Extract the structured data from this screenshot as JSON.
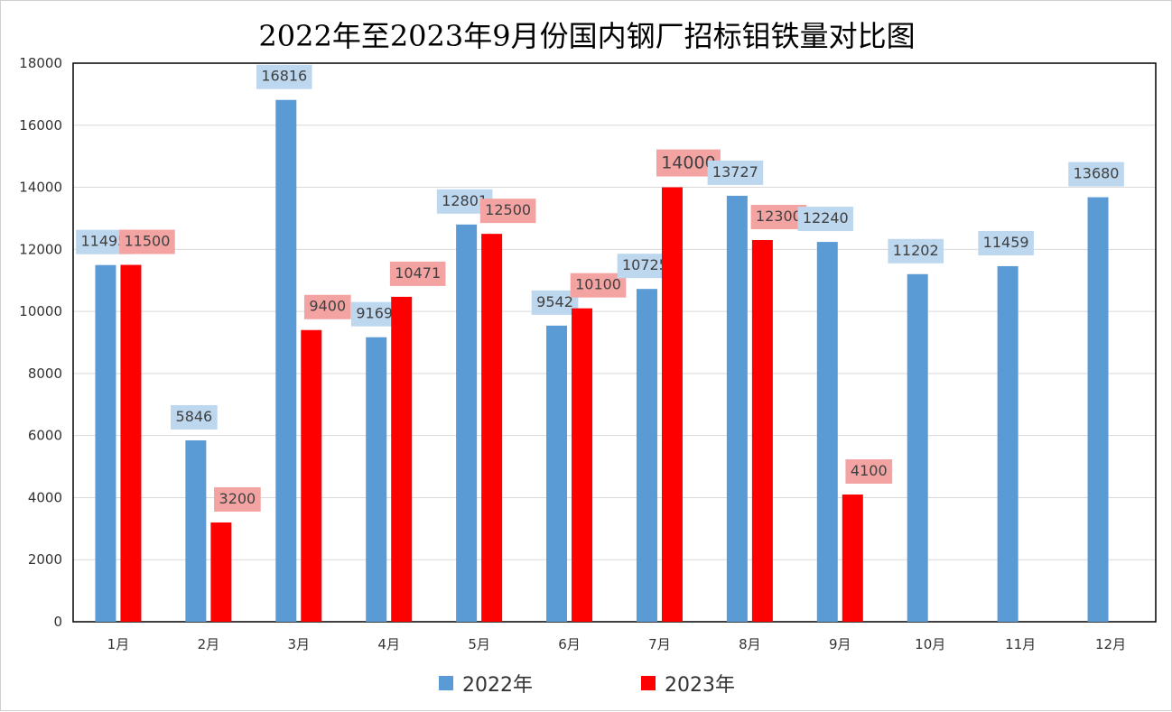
{
  "title": "2022年至2023年9月份国内钢厂招标钼铁量对比图",
  "chart_data": {
    "type": "bar",
    "title": "2022年至2023年9月份国内钢厂招标钼铁量对比图",
    "categories": [
      "1月",
      "2月",
      "3月",
      "4月",
      "5月",
      "6月",
      "7月",
      "8月",
      "9月",
      "10月",
      "11月",
      "12月"
    ],
    "series": [
      {
        "name": "2022年",
        "color": "#5B9BD5",
        "label_bg": "#BDD7EE",
        "values": [
          11495,
          5846,
          16816,
          9169,
          12801,
          9542,
          10725,
          13727,
          12240,
          11202,
          11459,
          13680
        ]
      },
      {
        "name": "2023年",
        "color": "#FF0000",
        "label_bg": "#F4A3A3",
        "values": [
          11500,
          3200,
          9400,
          10471,
          12500,
          10100,
          14000,
          12300,
          4100,
          null,
          null,
          null
        ]
      }
    ],
    "ylim": [
      0,
      18000
    ],
    "yticks": [
      0,
      2000,
      4000,
      6000,
      8000,
      10000,
      12000,
      14000,
      16000,
      18000
    ],
    "grid": true,
    "legend": "bottom-center",
    "xlabel": "",
    "ylabel": ""
  }
}
